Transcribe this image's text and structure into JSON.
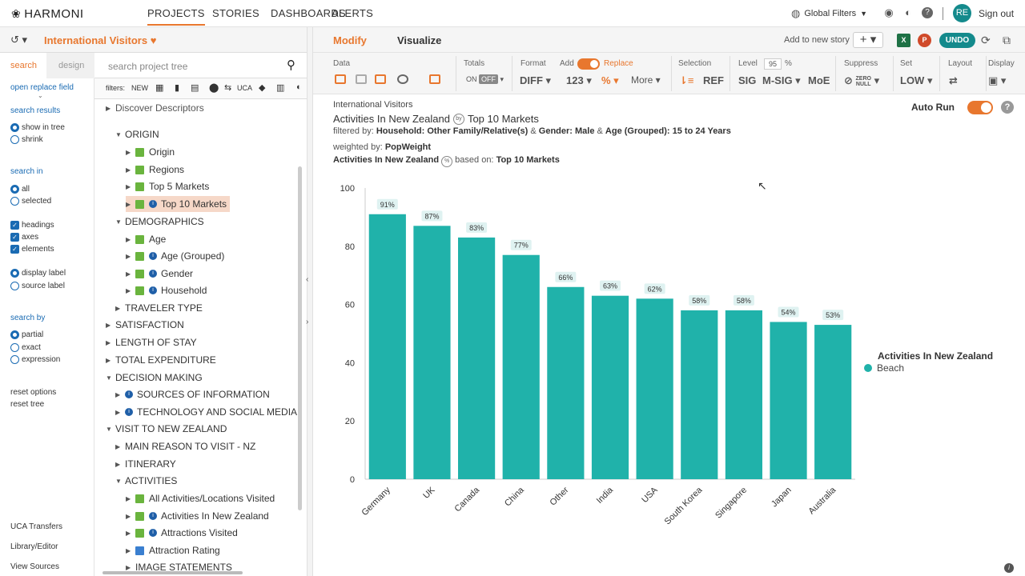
{
  "nav": {
    "logo": "HARMONI",
    "tabs": [
      "PROJECTS",
      "STORIES",
      "DASHBOARDS",
      "ALERTS"
    ],
    "global_filters": "Global Filters",
    "avatar_initials": "RE",
    "sign_out": "Sign out"
  },
  "project": {
    "title": "International Visitors"
  },
  "left_panel": {
    "tabs": [
      "search",
      "design"
    ],
    "open_replace_field": "open replace field",
    "search_results": "search results",
    "show_in_tree": "show in tree",
    "shrink": "shrink",
    "search_in": "search in",
    "all": "all",
    "selected": "selected",
    "headings": "headings",
    "axes": "axes",
    "elements": "elements",
    "display_label": "display label",
    "source_label": "source label",
    "search_by": "search by",
    "partial": "partial",
    "exact": "exact",
    "expression": "expression",
    "reset_options": "reset options",
    "reset_tree": "reset tree",
    "uca_transfers": "UCA Transfers",
    "library_editor": "Library/Editor",
    "view_sources": "View Sources"
  },
  "tree": {
    "search_placeholder": "search project tree",
    "filters_label": "filters:",
    "filters_new": "NEW",
    "filters_uca": "UCA",
    "discover": "Discover Descriptors",
    "origin": "ORIGIN",
    "origin_item": "Origin",
    "regions": "Regions",
    "top5": "Top 5 Markets",
    "top10": "Top 10 Markets",
    "demographics": "DEMOGRAPHICS",
    "age": "Age",
    "age_grouped": "Age (Grouped)",
    "gender": "Gender",
    "household": "Household",
    "traveler_type": "TRAVELER TYPE",
    "satisfaction": "SATISFACTION",
    "length_of_stay": "LENGTH OF STAY",
    "total_expenditure": "TOTAL EXPENDITURE",
    "decision_making": "DECISION MAKING",
    "sources_of_information": "SOURCES OF INFORMATION",
    "technology": "TECHNOLOGY AND SOCIAL MEDIA",
    "visit_nz": "VISIT TO NEW ZEALAND",
    "main_reason": "MAIN REASON TO VISIT - NZ",
    "itinerary": "ITINERARY",
    "activities": "ACTIVITIES",
    "all_activities": "All Activities/Locations Visited",
    "activities_nz": "Activities In New Zealand",
    "attractions_visited": "Attractions Visited",
    "attraction_rating": "Attraction Rating",
    "image_statements": "IMAGE STATEMENTS"
  },
  "main": {
    "tabs": [
      "Modify",
      "Visualize"
    ],
    "add_to_story": "Add to new story",
    "undo": "UNDO",
    "excel_label": "X",
    "ppt_label": "P"
  },
  "toolbar": {
    "data": "Data",
    "totals": "Totals",
    "totals_on": "ON",
    "totals_off": "OFF",
    "format": "Format",
    "add": "Add",
    "replace": "Replace",
    "diff": "DIFF",
    "num": "123",
    "pct": "%",
    "more": "More",
    "selection": "Selection",
    "ref": "REF",
    "level": "Level",
    "level_value": "95",
    "level_pct": "%",
    "sig": "SIG",
    "msig": "M-SIG",
    "moe": "MoE",
    "suppress": "Suppress",
    "zero": "ZERO",
    "null": "NULL",
    "set": "Set",
    "low": "LOW",
    "layout": "Layout",
    "display": "Display"
  },
  "content": {
    "project_name": "International Visitors",
    "title_left": "Activities In New Zealand",
    "title_by": "by",
    "title_right": "Top 10 Markets",
    "filtered_label": "filtered by:",
    "filter_household": "Household: Other Family/Relative(s)",
    "filter_and1": "&",
    "filter_gender": "Gender: Male",
    "filter_and2": "&",
    "filter_age": "Age (Grouped): 15 to 24 Years",
    "weighted_label": "weighted by:",
    "weighted_value": "PopWeight",
    "based_left": "Activities In New Zealand",
    "based_pct": "%",
    "based_label": "based on:",
    "based_value": "Top 10 Markets",
    "auto_run": "Auto Run"
  },
  "chart_data": {
    "type": "bar",
    "categories": [
      "Germany",
      "UK",
      "Canada",
      "China",
      "Other",
      "India",
      "USA",
      "South Korea",
      "Singapore",
      "Japan",
      "Australia"
    ],
    "series": [
      {
        "name": "Beach",
        "values": [
          91,
          87,
          83,
          77,
          66,
          63,
          62,
          58,
          58,
          54,
          53
        ]
      }
    ],
    "data_labels": [
      "91%",
      "87%",
      "83%",
      "77%",
      "66%",
      "63%",
      "62%",
      "58%",
      "58%",
      "54%",
      "53%"
    ],
    "yticks": [
      0,
      20,
      40,
      60,
      80,
      100
    ],
    "ylim": [
      0,
      100
    ],
    "legend_title": "Activities In New Zealand",
    "legend_position": "right",
    "grid": false,
    "color": "#20b2aa"
  }
}
